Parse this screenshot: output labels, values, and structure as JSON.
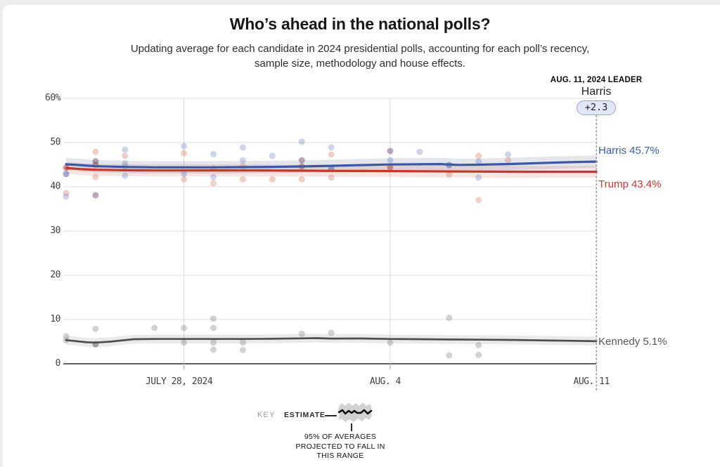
{
  "page": {
    "title": "Who’s ahead in the national polls?",
    "subtitle_line1": "Updating average for each candidate in 2024 presidential polls, accounting for each poll’s recency,",
    "subtitle_line2": "sample size, methodology and house effects."
  },
  "leader": {
    "date_label": "AUG. 11, 2024 LEADER",
    "name": "Harris",
    "margin": "+2.3"
  },
  "key": {
    "key_label": "KEY",
    "estimate_label": "ESTIMATE",
    "caption_line1": "95% OF AVERAGES",
    "caption_line2": "PROJECTED TO FALL IN",
    "caption_line3": "THIS RANGE"
  },
  "colors": {
    "grid": "#dcdcdc",
    "grid_vertical": "#d9d9d9",
    "axis_baseline": "#4a4a4a",
    "tick_mark": "#9a9a9a",
    "leader_dotted_line": "#9a9a9a",
    "badge_bg": "#e3e7f5",
    "badge_border": "#98a3d4",
    "badge_text": "#1c1f33"
  },
  "chart_data": {
    "type": "line",
    "title": "Who’s ahead in the national polls?",
    "xlabel": "",
    "ylabel": "%",
    "ylim": [
      0,
      60
    ],
    "xlim_days": [
      0,
      18
    ],
    "x_unit": "days (day 0 = chart start, day 18 = Aug. 11, 2024)",
    "grid": true,
    "legend_position": "right-edge-labels",
    "y_ticks": [
      {
        "value": 60,
        "label": "60%"
      },
      {
        "value": 50,
        "label": "50"
      },
      {
        "value": 40,
        "label": "40"
      },
      {
        "value": 30,
        "label": "30"
      },
      {
        "value": 20,
        "label": "20"
      },
      {
        "value": 10,
        "label": "10"
      },
      {
        "value": 0,
        "label": "0"
      }
    ],
    "x_ticks": [
      {
        "day": 4,
        "label": "JULY 28, 2024"
      },
      {
        "day": 11,
        "label": "AUG. 4"
      },
      {
        "day": 18,
        "label": "AUG. 11"
      }
    ],
    "annotation_line_day": 18,
    "series": [
      {
        "name": "Harris",
        "end_label": "Harris 45.7%",
        "final_value": 45.7,
        "color": "#3b57a8",
        "label_color": "#3a5cb1",
        "band_color": "rgba(105,115,150,0.18)",
        "band_halfwidth": 1.4,
        "points": [
          [
            0,
            45.1
          ],
          [
            0.5,
            44.9
          ],
          [
            1,
            44.65
          ],
          [
            2,
            44.5
          ],
          [
            3,
            44.4
          ],
          [
            4,
            44.4
          ],
          [
            5,
            44.4
          ],
          [
            6,
            44.45
          ],
          [
            7,
            44.5
          ],
          [
            8,
            44.6
          ],
          [
            9,
            44.75
          ],
          [
            10,
            44.9
          ],
          [
            11,
            45.05
          ],
          [
            12,
            45.1
          ],
          [
            12.7,
            45.15
          ],
          [
            13.3,
            44.95
          ],
          [
            14,
            45.0
          ],
          [
            15,
            45.15
          ],
          [
            16,
            45.35
          ],
          [
            17,
            45.55
          ],
          [
            18,
            45.7
          ]
        ]
      },
      {
        "name": "Trump",
        "end_label": "Trump 43.4%",
        "final_value": 43.4,
        "color": "#c8352b",
        "label_color": "#cf352b",
        "band_color": "rgba(195,105,88,0.17)",
        "band_halfwidth": 1.35,
        "points": [
          [
            0,
            44.25
          ],
          [
            0.5,
            44.0
          ],
          [
            1,
            43.85
          ],
          [
            2,
            43.75
          ],
          [
            3,
            43.7
          ],
          [
            4,
            43.7
          ],
          [
            5,
            43.72
          ],
          [
            6,
            43.7
          ],
          [
            7,
            43.68
          ],
          [
            8,
            43.65
          ],
          [
            9,
            43.6
          ],
          [
            10,
            43.58
          ],
          [
            11,
            43.55
          ],
          [
            12,
            43.5
          ],
          [
            13,
            43.48
          ],
          [
            14,
            43.45
          ],
          [
            15,
            43.42
          ],
          [
            16,
            43.4
          ],
          [
            17,
            43.4
          ],
          [
            18,
            43.4
          ]
        ]
      },
      {
        "name": "Kennedy",
        "end_label": "Kennedy 5.1%",
        "final_value": 5.1,
        "color": "#4e4e4e",
        "label_color": "#565656",
        "band_color": "rgba(128,128,128,0.17)",
        "band_halfwidth": 1.0,
        "points": [
          [
            0,
            5.35
          ],
          [
            0.7,
            4.85
          ],
          [
            1,
            4.8
          ],
          [
            1.5,
            5.0
          ],
          [
            2.3,
            5.55
          ],
          [
            3,
            5.6
          ],
          [
            4,
            5.6
          ],
          [
            5,
            5.6
          ],
          [
            6,
            5.6
          ],
          [
            7,
            5.65
          ],
          [
            8,
            5.75
          ],
          [
            8.5,
            5.8
          ],
          [
            9,
            5.7
          ],
          [
            10,
            5.72
          ],
          [
            11,
            5.6
          ],
          [
            12,
            5.55
          ],
          [
            13,
            5.5
          ],
          [
            14,
            5.45
          ],
          [
            15,
            5.4
          ],
          [
            16,
            5.3
          ],
          [
            17,
            5.2
          ],
          [
            18,
            5.1
          ]
        ]
      }
    ],
    "poll_dots": [
      [
        0,
        44.3,
        "dr"
      ],
      [
        0,
        42.9,
        "db"
      ],
      [
        0,
        38.6,
        "r"
      ],
      [
        0,
        37.8,
        "b"
      ],
      [
        1,
        47.9,
        "r"
      ],
      [
        1,
        45.8,
        "p"
      ],
      [
        1,
        45.0,
        "p"
      ],
      [
        1,
        42.2,
        "r"
      ],
      [
        1,
        38.1,
        "p"
      ],
      [
        2,
        48.4,
        "b"
      ],
      [
        2,
        47.0,
        "r"
      ],
      [
        2,
        45.3,
        "b"
      ],
      [
        2,
        44.6,
        "r"
      ],
      [
        2,
        42.5,
        "b"
      ],
      [
        4,
        49.2,
        "b"
      ],
      [
        4,
        47.6,
        "r"
      ],
      [
        4,
        43.0,
        "b"
      ],
      [
        4,
        41.7,
        "r"
      ],
      [
        5,
        47.4,
        "b"
      ],
      [
        5,
        44.2,
        "r"
      ],
      [
        5,
        42.2,
        "b"
      ],
      [
        5,
        40.8,
        "r"
      ],
      [
        6,
        48.9,
        "b"
      ],
      [
        6,
        46.0,
        "b"
      ],
      [
        6,
        44.7,
        "r"
      ],
      [
        6,
        41.7,
        "r"
      ],
      [
        7,
        47.0,
        "b"
      ],
      [
        7,
        41.7,
        "r"
      ],
      [
        8,
        50.2,
        "b"
      ],
      [
        8,
        46.0,
        "p"
      ],
      [
        8,
        44.6,
        "dr"
      ],
      [
        8,
        41.7,
        "r"
      ],
      [
        9,
        48.9,
        "b"
      ],
      [
        9,
        47.3,
        "r"
      ],
      [
        9,
        44.1,
        "db"
      ],
      [
        9,
        42.1,
        "r"
      ],
      [
        11,
        48.1,
        "p"
      ],
      [
        11,
        46.0,
        "b"
      ],
      [
        11,
        44.4,
        "dr"
      ],
      [
        12,
        47.9,
        "b"
      ],
      [
        13,
        44.9,
        "db"
      ],
      [
        13,
        42.8,
        "r"
      ],
      [
        14,
        47.0,
        "r"
      ],
      [
        14,
        45.7,
        "b"
      ],
      [
        14,
        42.1,
        "b"
      ],
      [
        14,
        37.0,
        "r"
      ],
      [
        15,
        47.3,
        "b"
      ],
      [
        15,
        46.0,
        "r"
      ],
      [
        0,
        6.2,
        "g"
      ],
      [
        0,
        5.3,
        "g"
      ],
      [
        1,
        7.9,
        "g"
      ],
      [
        1,
        4.4,
        "dg"
      ],
      [
        3,
        8.1,
        "g"
      ],
      [
        4,
        8.1,
        "g"
      ],
      [
        4,
        4.8,
        "g"
      ],
      [
        5,
        10.2,
        "g"
      ],
      [
        5,
        8.1,
        "g"
      ],
      [
        5,
        4.8,
        "g"
      ],
      [
        5,
        3.2,
        "g"
      ],
      [
        6,
        4.8,
        "g"
      ],
      [
        6,
        3.1,
        "g"
      ],
      [
        8,
        6.8,
        "g"
      ],
      [
        9,
        7.0,
        "g"
      ],
      [
        11,
        4.8,
        "g"
      ],
      [
        13,
        10.4,
        "g"
      ],
      [
        13,
        1.9,
        "g"
      ],
      [
        14,
        4.2,
        "g"
      ],
      [
        14,
        2.0,
        "g"
      ]
    ],
    "dot_colors": {
      "b": "rgba(100,122,195,0.32)",
      "r": "rgba(215,110,95,0.34)",
      "p": "rgba(118,82,115,0.5)",
      "db": "rgba(80,100,170,0.55)",
      "dr": "rgba(170,75,70,0.55)",
      "g": "rgba(138,138,138,0.38)",
      "dg": "rgba(108,108,108,0.6)"
    }
  }
}
